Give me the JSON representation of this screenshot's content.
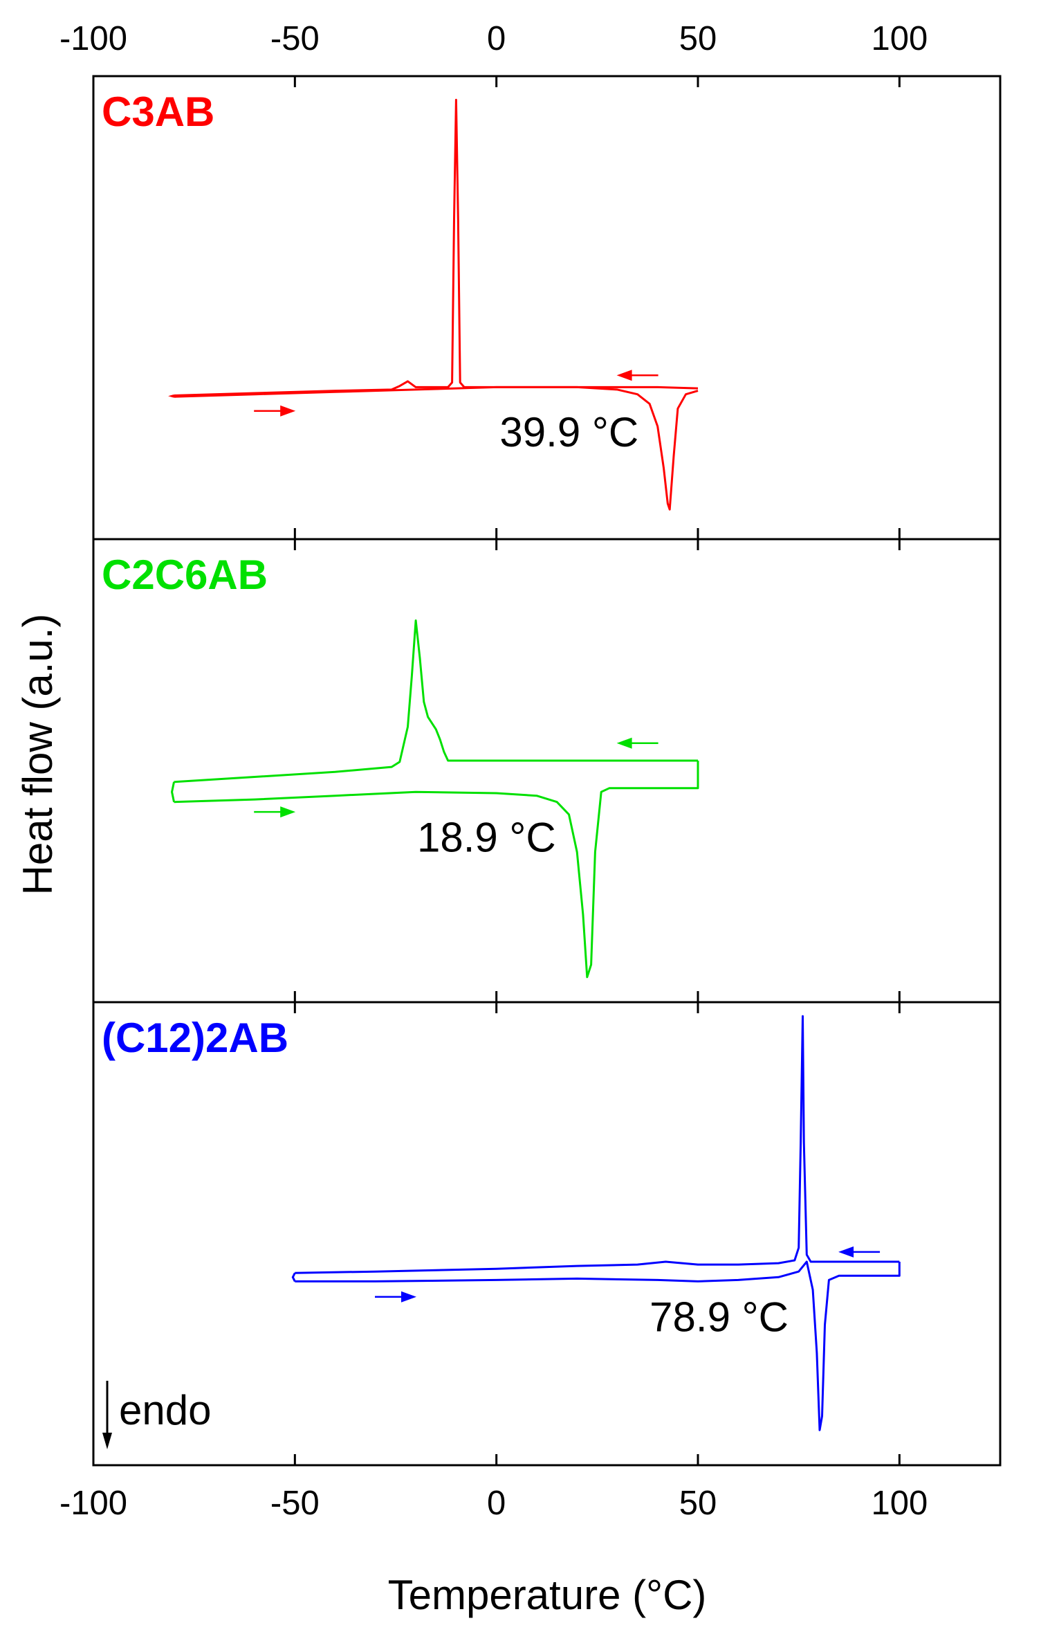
{
  "chart_data": {
    "type": "line",
    "xlabel": "Temperature (°C)",
    "ylabel": "Heat flow (a.u.)",
    "xlim": [
      -100,
      125
    ],
    "xticks": [
      -100,
      -50,
      0,
      50,
      100
    ],
    "top_ticks_labeled": true,
    "endo_annotation": "endo",
    "endo_direction": "down",
    "panels": [
      {
        "label": "C3AB",
        "color": "#ff0000",
        "peak_label": "39.9 °C",
        "ylim": [
          -1.2,
          2.7
        ],
        "heating": {
          "x": [
            -80,
            -60,
            -40,
            -20,
            0,
            20,
            30,
            35,
            38,
            40,
            41.5,
            42.5,
            43,
            44,
            45,
            47,
            50
          ],
          "y": [
            0,
            0.02,
            0.04,
            0.06,
            0.08,
            0.08,
            0.06,
            0.02,
            -0.06,
            -0.25,
            -0.6,
            -0.9,
            -0.95,
            -0.5,
            -0.1,
            0.02,
            0.05
          ]
        },
        "cooling": {
          "x": [
            50,
            40,
            20,
            0,
            -8,
            -9,
            -9.5,
            -10,
            -10.5,
            -11,
            -12,
            -20,
            -22,
            -24,
            -26,
            -40,
            -60,
            -80
          ],
          "y": [
            0.07,
            0.08,
            0.08,
            0.08,
            0.08,
            0.12,
            1.5,
            2.5,
            1.5,
            0.12,
            0.08,
            0.08,
            0.13,
            0.09,
            0.06,
            0.05,
            0.03,
            0.01
          ]
        },
        "arrows": [
          {
            "x": -55,
            "y": -0.12,
            "dir": "right"
          },
          {
            "x": 35,
            "y": 0.18,
            "dir": "left"
          }
        ]
      },
      {
        "label": "C2C6AB",
        "color": "#00e000",
        "peak_label": "18.9 °C",
        "ylim": [
          -1.8,
          1.9
        ],
        "heating": {
          "x": [
            -80,
            -60,
            -40,
            -20,
            0,
            10,
            15,
            18,
            20,
            21.5,
            22.5,
            23.5,
            24.5,
            26,
            28,
            50
          ],
          "y": [
            -0.2,
            -0.18,
            -0.15,
            -0.12,
            -0.13,
            -0.15,
            -0.2,
            -0.3,
            -0.6,
            -1.1,
            -1.6,
            -1.5,
            -0.6,
            -0.12,
            -0.09,
            -0.09
          ],
          "close_x": [
            50
          ],
          "close_y": [
            0.13
          ]
        },
        "cooling": {
          "x": [
            50,
            40,
            20,
            0,
            -10,
            -12,
            -13,
            -14,
            -15,
            -17,
            -18,
            -19,
            -20,
            -21,
            -22,
            -24,
            -26,
            -40,
            -60,
            -80
          ],
          "y": [
            0.13,
            0.13,
            0.13,
            0.13,
            0.13,
            0.13,
            0.2,
            0.3,
            0.38,
            0.48,
            0.6,
            0.95,
            1.25,
            0.8,
            0.4,
            0.12,
            0.08,
            0.04,
            0.0,
            -0.04
          ]
        },
        "arrows": [
          {
            "x": -55,
            "y": -0.28,
            "dir": "right"
          },
          {
            "x": 35,
            "y": 0.27,
            "dir": "left"
          }
        ]
      },
      {
        "label": "(C12)2AB",
        "color": "#0000ff",
        "peak_label": "78.9 °C",
        "ylim": [
          -1.4,
          1.9
        ],
        "heating": {
          "x": [
            -50,
            -30,
            0,
            20,
            40,
            50,
            60,
            70,
            75,
            77,
            78.5,
            79.5,
            80.2,
            80.8,
            81.5,
            82.5,
            85,
            100
          ],
          "y": [
            -0.09,
            -0.09,
            -0.08,
            -0.07,
            -0.08,
            -0.09,
            -0.08,
            -0.06,
            -0.02,
            0.05,
            -0.15,
            -0.6,
            -1.15,
            -1.05,
            -0.4,
            -0.08,
            -0.05,
            -0.05
          ],
          "close_x": [
            100
          ],
          "close_y": [
            0.05
          ]
        },
        "cooling": {
          "x": [
            100,
            90,
            80,
            78,
            77,
            76.3,
            76,
            75.5,
            75,
            74,
            70,
            60,
            50,
            42,
            35,
            20,
            0,
            -30,
            -50
          ],
          "y": [
            0.05,
            0.05,
            0.05,
            0.05,
            0.1,
            0.9,
            1.8,
            0.9,
            0.15,
            0.06,
            0.04,
            0.03,
            0.03,
            0.05,
            0.03,
            0.02,
            0.0,
            -0.02,
            -0.03
          ]
        },
        "arrows": [
          {
            "x": -25,
            "y": -0.2,
            "dir": "right"
          },
          {
            "x": 90,
            "y": 0.12,
            "dir": "left"
          }
        ]
      }
    ]
  }
}
